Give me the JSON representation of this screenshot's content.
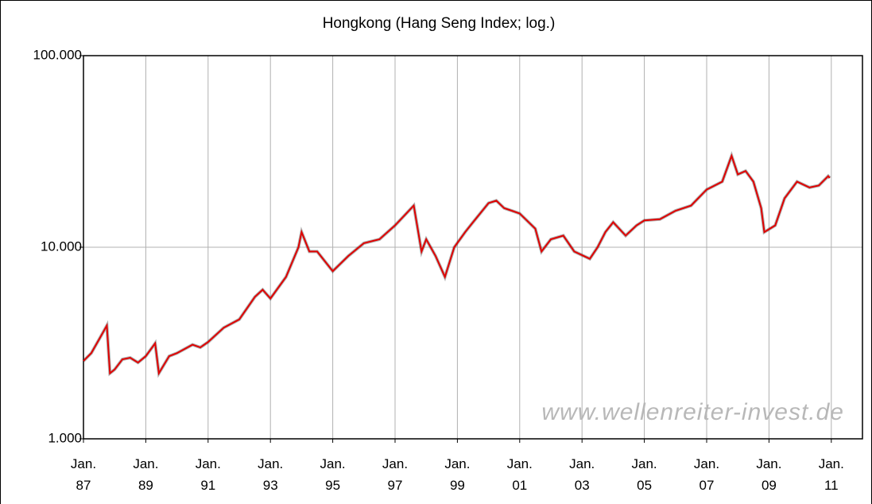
{
  "chart_data": {
    "type": "line",
    "title": "Hongkong (Hang Seng Index; log.)",
    "annotation": "www.wellenreiter-invest.de",
    "log_y": true,
    "grid": true,
    "xlim": [
      1987,
      2012
    ],
    "xticks": [
      {
        "value": 1987,
        "label": "Jan. 87"
      },
      {
        "value": 1989,
        "label": "Jan. 89"
      },
      {
        "value": 1991,
        "label": "Jan. 91"
      },
      {
        "value": 1993,
        "label": "Jan. 93"
      },
      {
        "value": 1995,
        "label": "Jan. 95"
      },
      {
        "value": 1997,
        "label": "Jan. 97"
      },
      {
        "value": 1999,
        "label": "Jan. 99"
      },
      {
        "value": 2001,
        "label": "Jan. 01"
      },
      {
        "value": 2003,
        "label": "Jan. 03"
      },
      {
        "value": 2005,
        "label": "Jan. 05"
      },
      {
        "value": 2007,
        "label": "Jan. 07"
      },
      {
        "value": 2009,
        "label": "Jan. 09"
      },
      {
        "value": 2011,
        "label": "Jan. 11"
      }
    ],
    "ylim": [
      1000,
      100000
    ],
    "yticks": [
      {
        "value": 1000,
        "label": "1.000"
      },
      {
        "value": 10000,
        "label": "10.000"
      },
      {
        "value": 100000,
        "label": "100.000"
      }
    ],
    "series": [
      {
        "name": "Hang Seng Index",
        "color": "#e00000",
        "x": [
          1987.0,
          1987.25,
          1987.5,
          1987.75,
          1987.85,
          1988.0,
          1988.25,
          1988.5,
          1988.75,
          1989.0,
          1989.3,
          1989.42,
          1989.75,
          1990.0,
          1990.5,
          1990.75,
          1991.0,
          1991.5,
          1992.0,
          1992.5,
          1992.75,
          1993.0,
          1993.5,
          1993.9,
          1994.0,
          1994.25,
          1994.5,
          1995.0,
          1995.5,
          1996.0,
          1996.5,
          1997.0,
          1997.6,
          1997.85,
          1998.0,
          1998.3,
          1998.6,
          1998.9,
          1999.25,
          1999.5,
          2000.0,
          2000.25,
          2000.5,
          2000.75,
          2001.0,
          2001.5,
          2001.7,
          2002.0,
          2002.4,
          2002.75,
          2003.25,
          2003.5,
          2003.75,
          2004.0,
          2004.4,
          2004.75,
          2005.0,
          2005.5,
          2006.0,
          2006.5,
          2007.0,
          2007.5,
          2007.8,
          2008.0,
          2008.25,
          2008.5,
          2008.75,
          2008.85,
          2009.2,
          2009.5,
          2009.9,
          2010.3,
          2010.6,
          2010.9,
          2010.95
        ],
        "values": [
          2550,
          2800,
          3300,
          3900,
          2200,
          2300,
          2600,
          2650,
          2500,
          2700,
          3150,
          2200,
          2700,
          2800,
          3100,
          3000,
          3200,
          3800,
          4200,
          5500,
          6000,
          5400,
          7000,
          10000,
          12000,
          9500,
          9500,
          7500,
          9000,
          10500,
          11000,
          13000,
          16500,
          9500,
          11000,
          9000,
          7000,
          10000,
          12000,
          13500,
          17000,
          17500,
          16000,
          15500,
          15000,
          12500,
          9500,
          11000,
          11500,
          9500,
          8700,
          10000,
          12000,
          13500,
          11500,
          13000,
          13800,
          14000,
          15500,
          16500,
          20000,
          22000,
          30000,
          24000,
          25000,
          22000,
          16000,
          12000,
          13000,
          18000,
          22000,
          20500,
          21000,
          23500,
          23000
        ]
      }
    ]
  }
}
